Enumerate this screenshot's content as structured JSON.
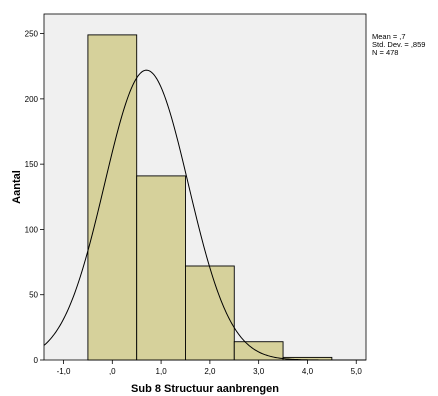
{
  "chart_data": {
    "type": "bar",
    "subtype": "histogram",
    "xlabel": "Sub 8 Structuur aanbrengen",
    "ylabel": "Aantal",
    "xlim": [
      -1.4,
      5.2
    ],
    "ylim": [
      0,
      265
    ],
    "x_ticks": [
      {
        "value": -1,
        "label": "-1,0"
      },
      {
        "value": 0,
        "label": ",0"
      },
      {
        "value": 1,
        "label": "1,0"
      },
      {
        "value": 2,
        "label": "2,0"
      },
      {
        "value": 3,
        "label": "3,0"
      },
      {
        "value": 4,
        "label": "4,0"
      },
      {
        "value": 5,
        "label": "5,0"
      }
    ],
    "y_ticks": [
      {
        "value": 0,
        "label": "0"
      },
      {
        "value": 50,
        "label": "50"
      },
      {
        "value": 100,
        "label": "100"
      },
      {
        "value": 150,
        "label": "150"
      },
      {
        "value": 200,
        "label": "200"
      },
      {
        "value": 250,
        "label": "250"
      }
    ],
    "bins": [
      {
        "x0": -0.5,
        "x1": 0.5,
        "count": 249
      },
      {
        "x0": 0.5,
        "x1": 1.5,
        "count": 141
      },
      {
        "x0": 1.5,
        "x1": 2.5,
        "count": 72
      },
      {
        "x0": 2.5,
        "x1": 3.5,
        "count": 14
      },
      {
        "x0": 3.5,
        "x1": 4.5,
        "count": 2
      }
    ],
    "bar_color": "#d6d19b",
    "bar_edge_color": "#000000",
    "plot_background": "#f0f0f0",
    "normal_curve": {
      "mean": 0.7,
      "sd": 0.859,
      "n": 478,
      "bin_width": 1.0
    },
    "stats": {
      "mean": "Mean = ,7",
      "std_dev": "Std. Dev. = ,859",
      "n": "N = 478"
    },
    "grid": false
  }
}
